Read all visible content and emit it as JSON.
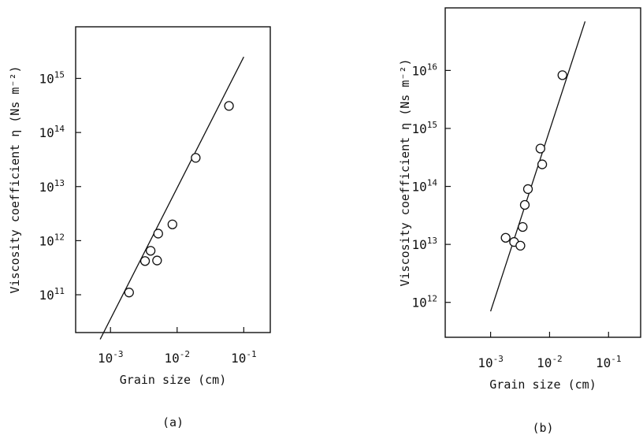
{
  "chart_data": [
    {
      "panel": "(a)",
      "type": "scatter",
      "xlabel": "Grain size (cm)",
      "ylabel": "Viscosity coefficient η (Ns m⁻²)",
      "x_scale": "log",
      "y_scale": "log",
      "xlim": [
        0.0003,
        0.25
      ],
      "ylim": [
        20000000000,
        9000000000000000.0
      ],
      "x_ticks": [
        {
          "value": 0.001,
          "base": "10",
          "exp": "-3"
        },
        {
          "value": 0.01,
          "base": "10",
          "exp": "-2"
        },
        {
          "value": 0.1,
          "base": "10",
          "exp": "-1"
        }
      ],
      "y_ticks": [
        {
          "value": 100000000000,
          "base": "10",
          "exp": "11"
        },
        {
          "value": 1000000000000,
          "base": "10",
          "exp": "12"
        },
        {
          "value": 10000000000000,
          "base": "10",
          "exp": "13"
        },
        {
          "value": 100000000000000,
          "base": "10",
          "exp": "14"
        },
        {
          "value": 1000000000000000,
          "base": "10",
          "exp": "15"
        }
      ],
      "points": [
        {
          "x": 0.0019,
          "y": 110000000000
        },
        {
          "x": 0.0033,
          "y": 420000000000
        },
        {
          "x": 0.004,
          "y": 650000000000
        },
        {
          "x": 0.005,
          "y": 430000000000
        },
        {
          "x": 0.0052,
          "y": 1350000000000
        },
        {
          "x": 0.0085,
          "y": 2000000000000
        },
        {
          "x": 0.019,
          "y": 34000000000000
        },
        {
          "x": 0.06,
          "y": 310000000000000
        }
      ],
      "fit_line": [
        {
          "x": 0.0007,
          "y": 15000000000
        },
        {
          "x": 0.1,
          "y": 2500000000000000
        }
      ],
      "caption": "(a)"
    },
    {
      "panel": "(b)",
      "type": "scatter",
      "xlabel": "Grain size (cm)",
      "ylabel": "Viscosity coefficient η (Ns m⁻²)",
      "x_scale": "log",
      "y_scale": "log",
      "xlim": [
        0.00017,
        0.35
      ],
      "ylim": [
        250000000000,
        1.2e+17
      ],
      "x_ticks": [
        {
          "value": 0.001,
          "base": "10",
          "exp": "-3"
        },
        {
          "value": 0.01,
          "base": "10",
          "exp": "-2"
        },
        {
          "value": 0.1,
          "base": "10",
          "exp": "-1"
        }
      ],
      "y_ticks": [
        {
          "value": 1000000000000,
          "base": "10",
          "exp": "12"
        },
        {
          "value": 10000000000000,
          "base": "10",
          "exp": "13"
        },
        {
          "value": 100000000000000,
          "base": "10",
          "exp": "14"
        },
        {
          "value": 1000000000000000,
          "base": "10",
          "exp": "15"
        },
        {
          "value": 10000000000000000,
          "base": "10",
          "exp": "16"
        }
      ],
      "points": [
        {
          "x": 0.0018,
          "y": 13000000000000
        },
        {
          "x": 0.0025,
          "y": 11000000000000
        },
        {
          "x": 0.0032,
          "y": 9500000000000
        },
        {
          "x": 0.0035,
          "y": 20000000000000
        },
        {
          "x": 0.0038,
          "y": 48000000000000
        },
        {
          "x": 0.0043,
          "y": 90000000000000
        },
        {
          "x": 0.007,
          "y": 450000000000000
        },
        {
          "x": 0.0075,
          "y": 240000000000000
        },
        {
          "x": 0.0165,
          "y": 8300000000000000
        }
      ],
      "fit_line": [
        {
          "x": 0.001,
          "y": 700000000000
        },
        {
          "x": 0.04,
          "y": 70000000000000000
        }
      ],
      "caption": "(b)"
    }
  ]
}
